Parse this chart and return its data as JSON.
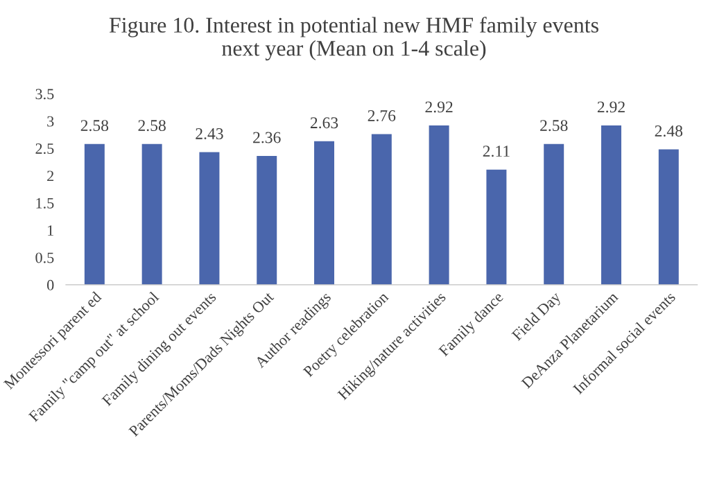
{
  "chart_data": {
    "type": "bar",
    "title": "Figure 10. Interest in potential new HMF family events\nnext year (Mean on 1-4 scale)",
    "categories": [
      "Montessori parent ed",
      "Family \"camp out\" at school",
      "Family dining out events",
      "Parents/Moms/Dads Nights Out",
      "Author readings",
      "Poetry celebration",
      "Hiking/nature activities",
      "Family dance",
      "Field Day",
      "DeAnza Planetarium",
      "Informal social events"
    ],
    "values": [
      2.58,
      2.58,
      2.43,
      2.36,
      2.63,
      2.76,
      2.92,
      2.11,
      2.58,
      2.92,
      2.48
    ],
    "color": "#4a66ac",
    "ylim": [
      0,
      3.5
    ],
    "yticks": [
      0,
      {
        "value": 0.5,
        "label": "0.5"
      },
      1,
      {
        "value": 1.5,
        "label": "1.5"
      },
      2,
      {
        "value": 2.5,
        "label": "2.5"
      },
      3,
      {
        "value": 3.5,
        "label": "3.5"
      }
    ],
    "data_labels": true,
    "grid": false,
    "legend": false
  }
}
